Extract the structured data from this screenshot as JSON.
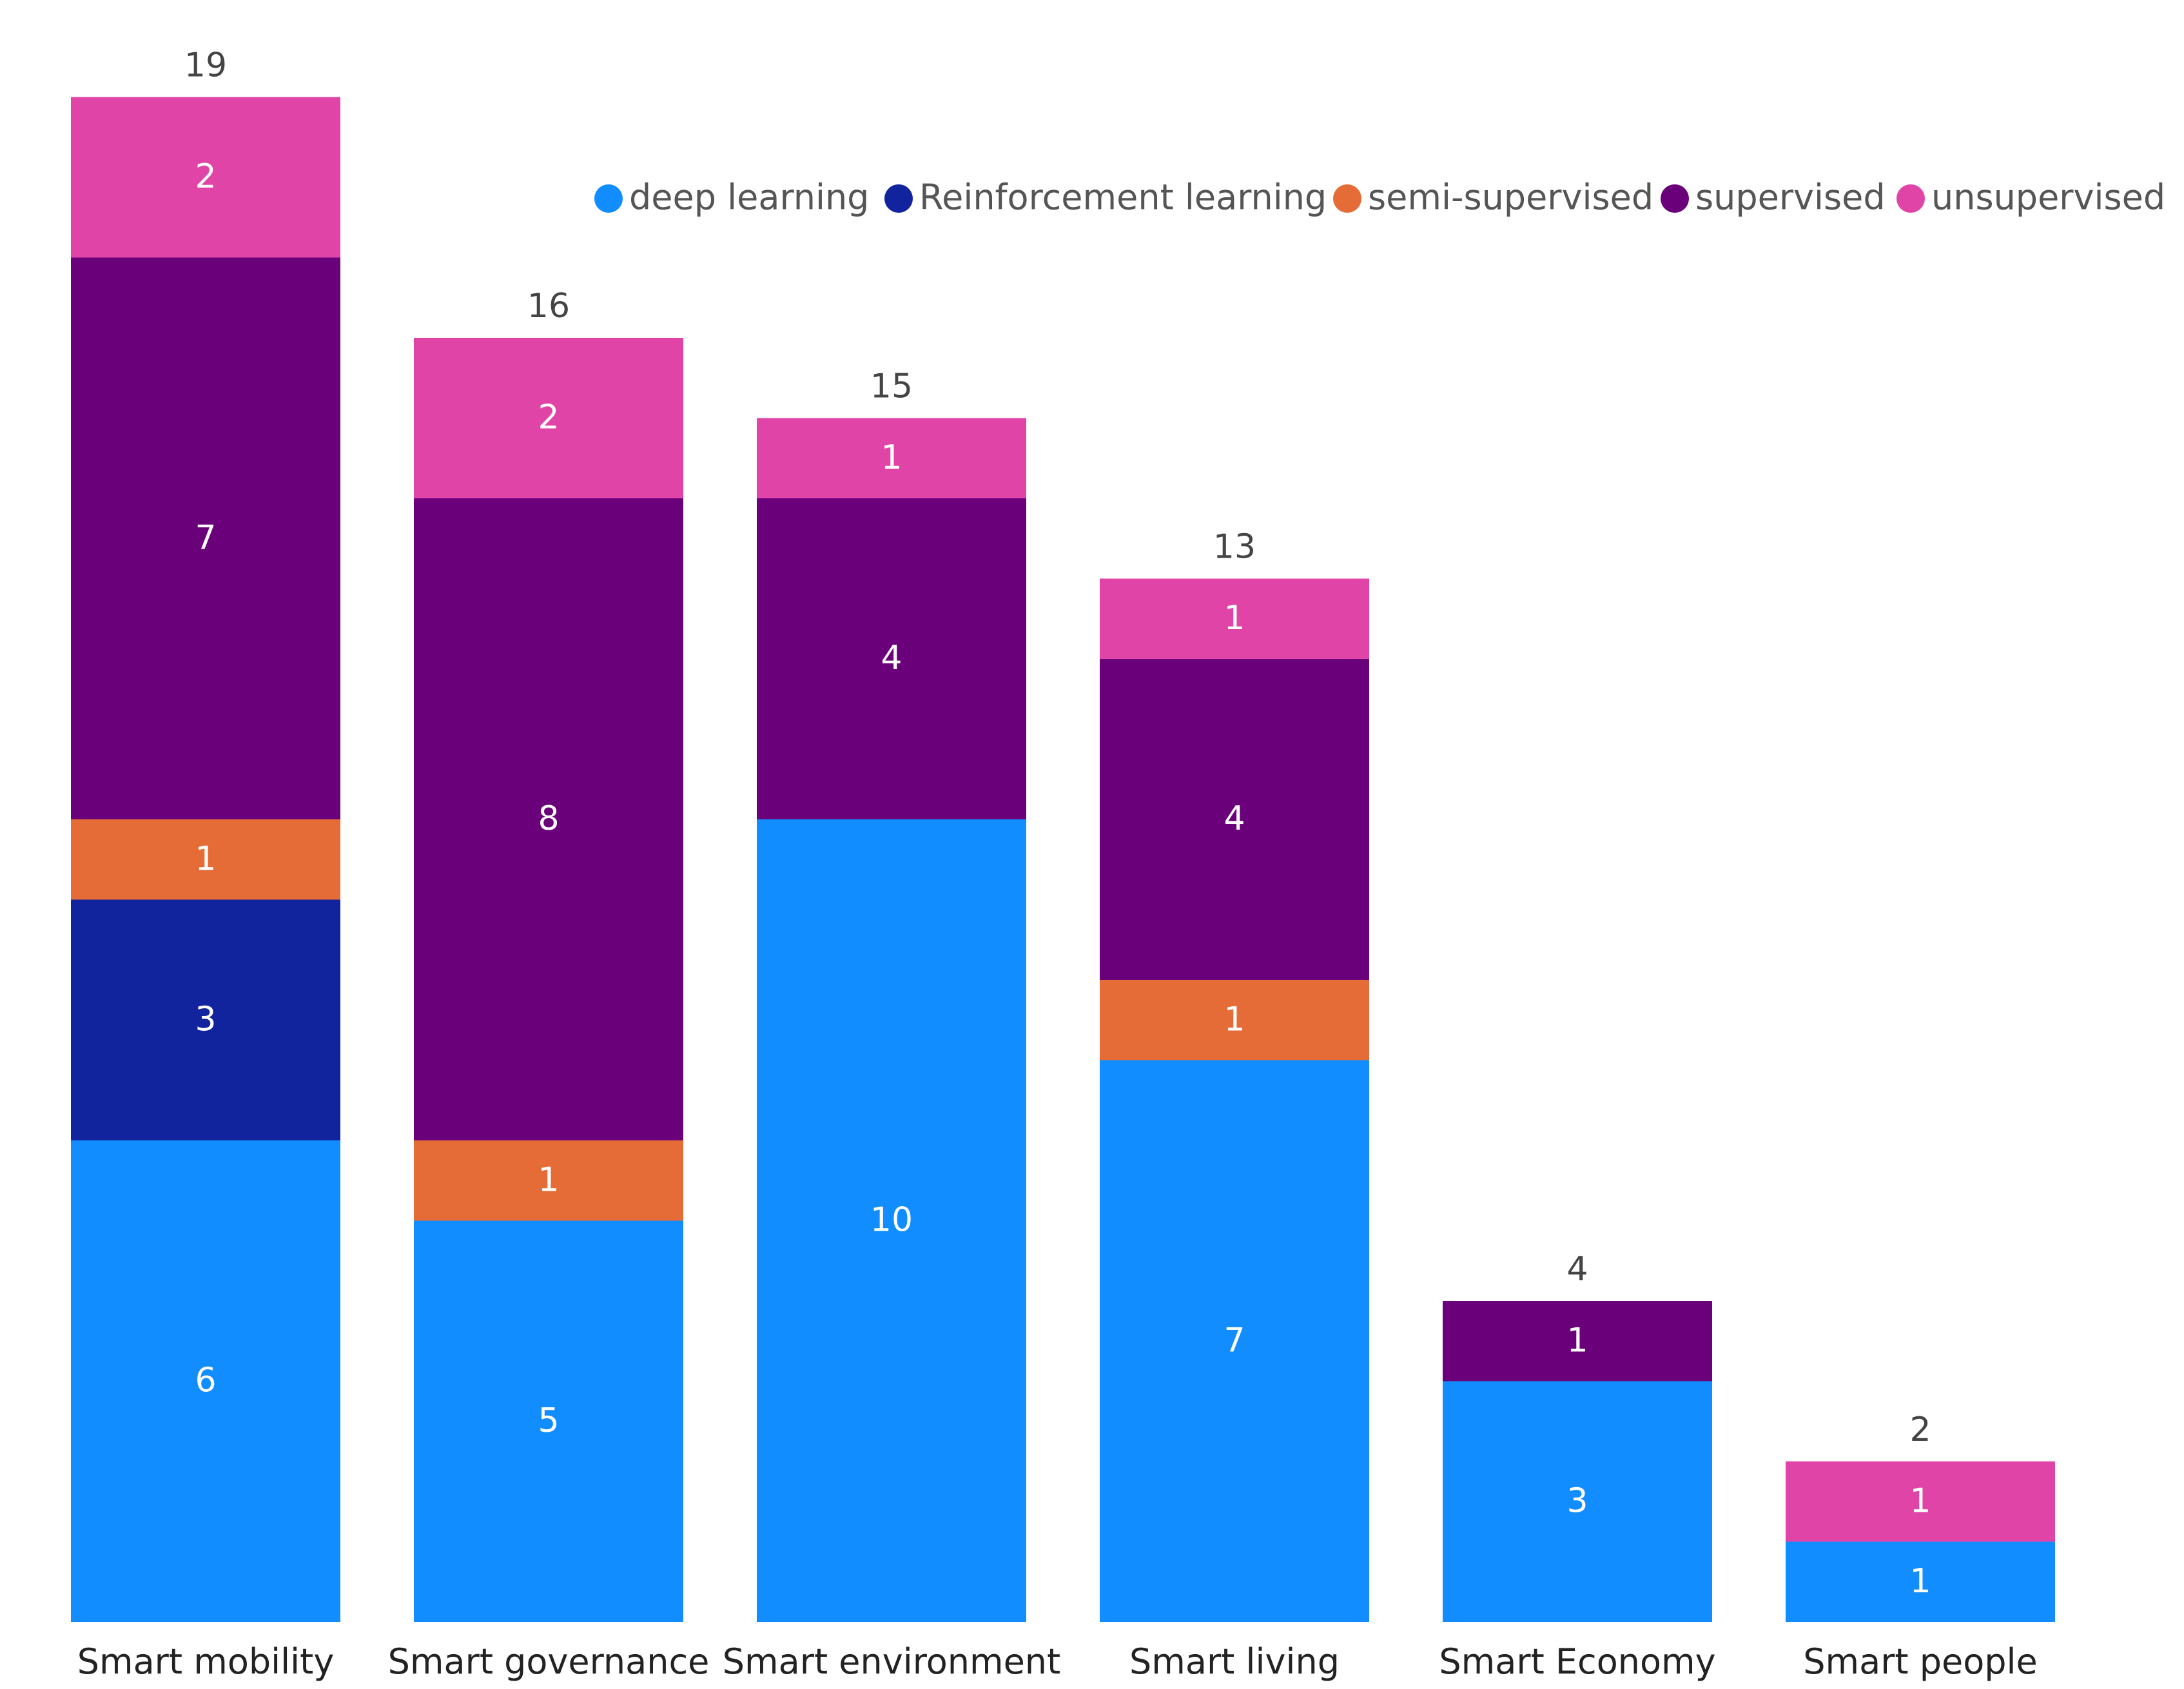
{
  "chart_data": {
    "type": "bar",
    "stacked": true,
    "title": "",
    "xlabel": "",
    "ylabel": "",
    "ylim": [
      0,
      19
    ],
    "grid": false,
    "legend_position": "top-right",
    "categories": [
      "Smart mobility",
      "Smart governance",
      "Smart environment",
      "Smart living",
      "Smart Economy",
      "Smart people"
    ],
    "totals": [
      19,
      16,
      15,
      13,
      4,
      2
    ],
    "series": [
      {
        "name": "deep learning",
        "color": "#118dff",
        "values": [
          6,
          5,
          10,
          7,
          3,
          1
        ]
      },
      {
        "name": "Reinforcement learning",
        "color": "#12239e",
        "values": [
          3,
          0,
          0,
          0,
          0,
          0
        ]
      },
      {
        "name": "semi-supervised",
        "color": "#e66c37",
        "values": [
          1,
          1,
          0,
          1,
          0,
          0
        ]
      },
      {
        "name": "supervised",
        "color": "#6b007b",
        "values": [
          7,
          8,
          4,
          4,
          1,
          0
        ]
      },
      {
        "name": "unsupervised",
        "color": "#e044a7",
        "values": [
          2,
          2,
          1,
          1,
          0,
          1
        ]
      }
    ]
  }
}
